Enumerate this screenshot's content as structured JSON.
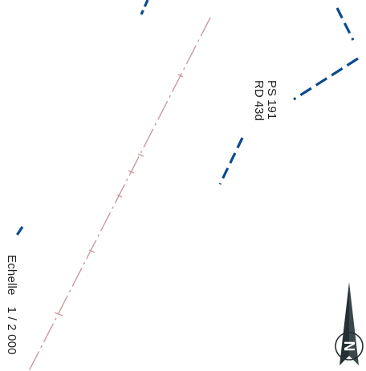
{
  "map": {
    "parcel_label": {
      "line1": "PS 191",
      "line2": "RD 43d"
    },
    "scale": {
      "label": "Echelle",
      "value": "1 / 2 000"
    },
    "north_arrow": {
      "icon": "north-arrow-icon",
      "letter": "N"
    },
    "colors": {
      "boundary_blue": "#0b4a8f",
      "axis_pink": "#c99aa0",
      "arrow_dark": "#243033"
    }
  }
}
